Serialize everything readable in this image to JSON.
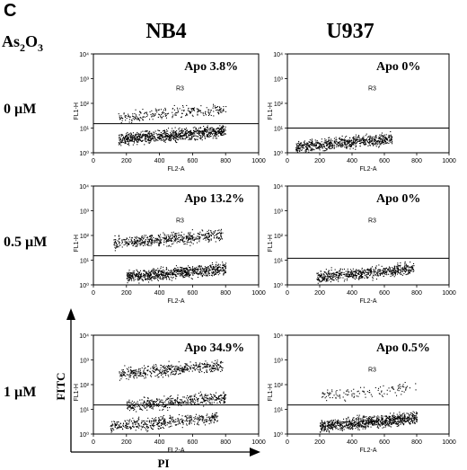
{
  "figure": {
    "panel_letter": "C",
    "treatment": {
      "base": "As",
      "sub1": "2",
      "mid": "O",
      "sub2": "3"
    },
    "columns": [
      "NB4",
      "U937"
    ],
    "rows": [
      "0  µM",
      "0.5 µM",
      "1  µM"
    ],
    "outer_axes": {
      "y_label": "FITC",
      "x_label": "PI"
    }
  },
  "chart_data": [
    {
      "type": "scatter",
      "cell_line": "NB4",
      "dose": "0 µM",
      "annotation": "Apo  3.8%",
      "apoptotic_percent": 3.8,
      "gate": "R3",
      "xlabel": "FL2-A",
      "ylabel": "FL1-H",
      "xlim": [
        0,
        1000
      ],
      "xticks": [
        0,
        200,
        400,
        600,
        800,
        1000
      ],
      "ylog": true,
      "ylim": [
        1,
        10000
      ],
      "yticks": [
        "10⁰",
        "10¹",
        "10²",
        "10³",
        "10⁴"
      ],
      "gate_y": 15,
      "grid": false,
      "populations": [
        {
          "name": "main",
          "x_range": [
            150,
            800
          ],
          "y_center": 5,
          "count": 900
        },
        {
          "name": "upper",
          "x_range": [
            150,
            800
          ],
          "y_center": 40,
          "count": 250
        }
      ]
    },
    {
      "type": "scatter",
      "cell_line": "U937",
      "dose": "0 µM",
      "annotation": "Apo  0%",
      "apoptotic_percent": 0,
      "gate": "R3",
      "xlabel": "FL2-A",
      "ylabel": "FL1-H",
      "xlim": [
        0,
        1000
      ],
      "xticks": [
        0,
        200,
        400,
        600,
        800,
        1000
      ],
      "ylog": true,
      "ylim": [
        1,
        10000
      ],
      "yticks": [
        "10⁰",
        "10¹",
        "10²",
        "10³",
        "10⁴"
      ],
      "gate_y": 10,
      "grid": false,
      "populations": [
        {
          "name": "main",
          "x_range": [
            50,
            650
          ],
          "y_center": 2.5,
          "count": 700
        }
      ]
    },
    {
      "type": "scatter",
      "cell_line": "NB4",
      "dose": "0.5 µM",
      "annotation": "Apo  13.2%",
      "apoptotic_percent": 13.2,
      "gate": "R3",
      "xlabel": "FL2-A",
      "ylabel": "FL1-H",
      "xlim": [
        0,
        1000
      ],
      "xticks": [
        0,
        200,
        400,
        600,
        800,
        1000
      ],
      "ylog": true,
      "ylim": [
        1,
        10000
      ],
      "yticks": [
        "10⁰",
        "10¹",
        "10²",
        "10³",
        "10⁴"
      ],
      "gate_y": 15,
      "grid": false,
      "populations": [
        {
          "name": "main",
          "x_range": [
            200,
            800
          ],
          "y_center": 3,
          "count": 800
        },
        {
          "name": "upper",
          "x_range": [
            120,
            780
          ],
          "y_center": 70,
          "count": 550
        }
      ]
    },
    {
      "type": "scatter",
      "cell_line": "U937",
      "dose": "0.5 µM",
      "annotation": "Apo  0%",
      "apoptotic_percent": 0,
      "gate": "R3",
      "xlabel": "FL2-A",
      "ylabel": "FL1-H",
      "xlim": [
        0,
        1000
      ],
      "xticks": [
        0,
        200,
        400,
        600,
        800,
        1000
      ],
      "ylog": true,
      "ylim": [
        1,
        10000
      ],
      "yticks": [
        "10⁰",
        "10¹",
        "10²",
        "10³",
        "10⁴"
      ],
      "gate_y": 12,
      "grid": false,
      "populations": [
        {
          "name": "main",
          "x_range": [
            180,
            780
          ],
          "y_center": 3,
          "count": 650
        }
      ]
    },
    {
      "type": "scatter",
      "cell_line": "NB4",
      "dose": "1  µM",
      "annotation": "Apo  34.9%",
      "apoptotic_percent": 34.9,
      "gate": "R3",
      "xlabel": "FL2-A",
      "ylabel": "FL1-H",
      "xlim": [
        0,
        1000
      ],
      "xticks": [
        0,
        200,
        400,
        600,
        800,
        1000
      ],
      "ylog": true,
      "ylim": [
        1,
        10000
      ],
      "yticks": [
        "10⁰",
        "10¹",
        "10²",
        "10³",
        "10⁴"
      ],
      "gate_y": 15,
      "grid": false,
      "populations": [
        {
          "name": "band-high",
          "x_range": [
            150,
            780
          ],
          "y_center": 400,
          "count": 450
        },
        {
          "name": "band-mid",
          "x_range": [
            200,
            800
          ],
          "y_center": 20,
          "count": 450
        },
        {
          "name": "band-low",
          "x_range": [
            100,
            750
          ],
          "y_center": 3,
          "count": 450
        }
      ]
    },
    {
      "type": "scatter",
      "cell_line": "U937",
      "dose": "1  µM",
      "annotation": "Apo  0.5%",
      "apoptotic_percent": 0.5,
      "gate": "R3",
      "xlabel": "FL2-A",
      "ylabel": "FL1-H",
      "xlim": [
        0,
        1000
      ],
      "xticks": [
        0,
        200,
        400,
        600,
        800,
        1000
      ],
      "ylog": true,
      "ylim": [
        1,
        10000
      ],
      "yticks": [
        "10⁰",
        "10¹",
        "10²",
        "10³",
        "10⁴"
      ],
      "gate_y": 15,
      "grid": false,
      "populations": [
        {
          "name": "main",
          "x_range": [
            200,
            800
          ],
          "y_center": 3,
          "count": 900
        },
        {
          "name": "upper",
          "x_range": [
            200,
            800
          ],
          "y_center": 50,
          "count": 120
        }
      ]
    }
  ]
}
